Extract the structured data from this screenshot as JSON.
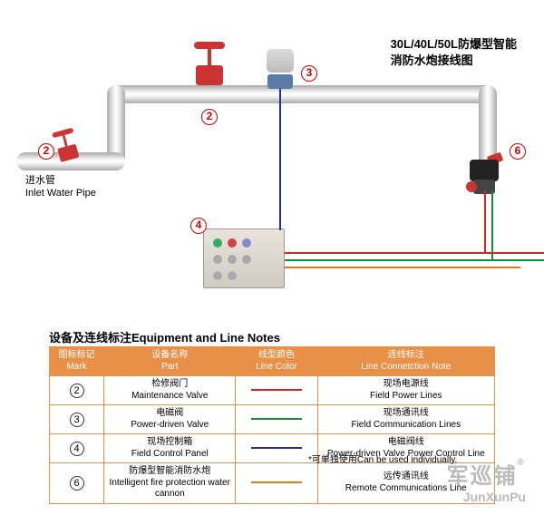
{
  "title": {
    "line1": "30L/40L/50L防爆型智能",
    "line2": "消防水炮接线图"
  },
  "inlet": {
    "cn": "进水管",
    "en": "Inlet Water Pipe"
  },
  "markers": {
    "m2": "2",
    "m3": "3",
    "m4": "4",
    "m6": "6"
  },
  "wires": {
    "red": "#d22",
    "green": "#1a8a3a",
    "blue": "#2a2a9a",
    "orange": "#e07a1a"
  },
  "notes_title": "设备及连线标注Equipment and Line Notes",
  "table": {
    "headers": {
      "mark_cn": "图标标记",
      "mark_en": "Mark",
      "part_cn": "设备名称",
      "part_en": "Part",
      "color_cn": "线型颜色",
      "color_en": "Line Color",
      "note_cn": "连线标注",
      "note_en": "Line Connetction Note"
    },
    "rows": [
      {
        "mark": "2",
        "part_cn": "检修阀门",
        "part_en": "Maintenance Valve",
        "color": "#d22",
        "note_cn": "现场电源线",
        "note_en": "Field Power Lines"
      },
      {
        "mark": "3",
        "part_cn": "电磁阀",
        "part_en": "Power-driven Valve",
        "color": "#1a8a3a",
        "note_cn": "现场通讯线",
        "note_en": "Field Communication Lines"
      },
      {
        "mark": "4",
        "part_cn": "现场控制箱",
        "part_en": "Field Control Panel",
        "color": "#2a2a9a",
        "note_cn": "电磁阀线",
        "note_en": "Power-driven Valve Power Control Line"
      },
      {
        "mark": "6",
        "part_cn": "防爆型智能消防水炮",
        "part_en": "Intelligent fire protection water cannon",
        "color": "#e07a1a",
        "note_cn": "远传通讯线",
        "note_en": "Remote Communications Line"
      }
    ]
  },
  "footnote": "*可单独使用Can be used individually.",
  "logo": {
    "cn": "军巡铺",
    "en": "JunXunPu",
    "r": "®"
  }
}
